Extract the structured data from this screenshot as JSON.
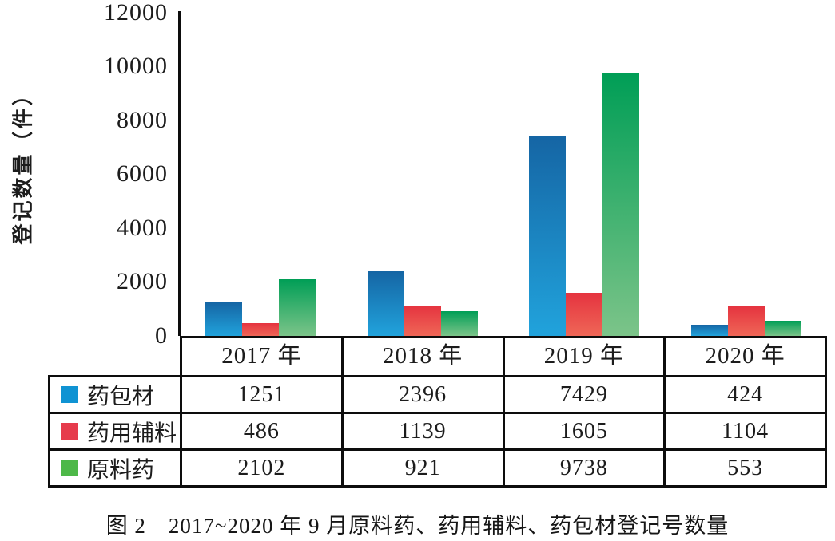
{
  "figure": {
    "caption": "图 2　2017~2020 年 9 月原料药、药用辅料、药包材登记号数量"
  },
  "y_axis": {
    "title": "登记数量（件）",
    "ticks": [
      "12000",
      "10000",
      "8000",
      "6000",
      "4000",
      "2000",
      "0"
    ]
  },
  "chart_data": {
    "type": "bar",
    "title": "图 2　2017~2020 年 9 月原料药、药用辅料、药包材登记号数量",
    "ylabel": "登记数量（件）",
    "ylim": [
      0,
      12000
    ],
    "ytick_step": 2000,
    "grid": false,
    "legend_position": "table-left",
    "categories": [
      "2017 年",
      "2018 年",
      "2019 年",
      "2020 年"
    ],
    "series": [
      {
        "name": "药包材",
        "values": [
          1251,
          2396,
          7429,
          424
        ],
        "color_top": "#1565a4",
        "color_bottom": "#21a3dc",
        "swatch": "#0f93d3"
      },
      {
        "name": "药用辅料",
        "values": [
          486,
          1139,
          1605,
          1104
        ],
        "color_top": "#e5333f",
        "color_bottom": "#ef6757",
        "swatch": "#e63b4c"
      },
      {
        "name": "原料药",
        "values": [
          2102,
          921,
          9738,
          553
        ],
        "color_top": "#009e56",
        "color_bottom": "#7cc489",
        "swatch": "#4db848"
      }
    ]
  }
}
